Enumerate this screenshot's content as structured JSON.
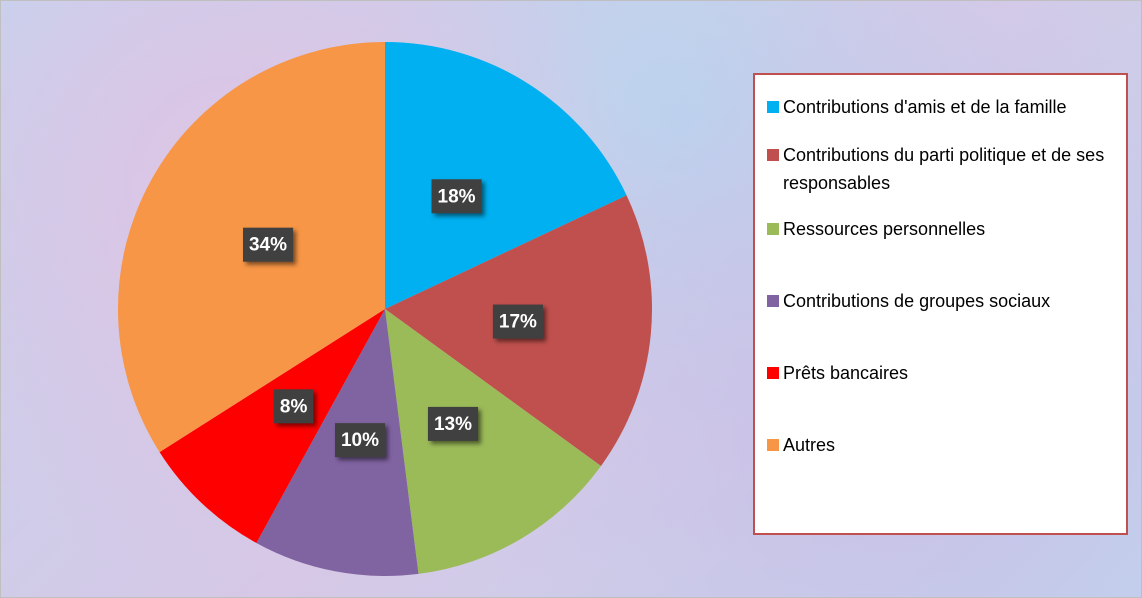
{
  "chart_data": {
    "type": "pie",
    "categories": [
      "Contributions d'amis et de la famille",
      "Contributions du parti politique et de ses responsables",
      "Ressources personnelles",
      "Contributions de groupes sociaux",
      "Prêts bancaires",
      "Autres"
    ],
    "values": [
      18,
      17,
      13,
      10,
      8,
      34
    ],
    "value_labels": [
      "18%",
      "17%",
      "13%",
      "10%",
      "8%",
      "34%"
    ],
    "colors": [
      "#00b0f0",
      "#c0504d",
      "#9bbb59",
      "#8064a2",
      "#ff0000",
      "#f79646"
    ]
  }
}
